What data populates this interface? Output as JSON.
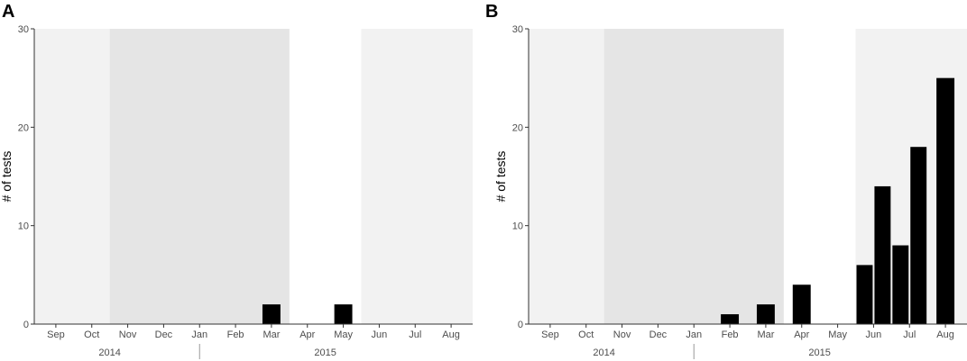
{
  "chart_data": [
    {
      "type": "bar",
      "panel_label": "A",
      "ylabel": "# of tests",
      "ylim": [
        0,
        30
      ],
      "yticks": [
        0,
        10,
        20,
        30
      ],
      "categories": [
        "Sep",
        "Oct",
        "Nov",
        "Dec",
        "Jan",
        "Feb",
        "Mar",
        "Apr",
        "May",
        "Jun",
        "Jul",
        "Aug"
      ],
      "years": [
        {
          "label": "2014",
          "from": "Sep",
          "to": "Dec"
        },
        {
          "label": "2015",
          "from": "Jan",
          "to": "Aug"
        }
      ],
      "bars": [
        {
          "month": "Mar",
          "value": 2
        },
        {
          "month": "May",
          "value": 2
        }
      ],
      "shaded_periods": [
        {
          "from": "Sep",
          "to": "Oct",
          "shade": "light"
        },
        {
          "from": "Nov",
          "to": "Mar",
          "shade": "dark"
        },
        {
          "from": "Jun",
          "to": "Aug",
          "shade": "light"
        }
      ],
      "bar_color": "#000000",
      "light_shade_color": "#f2f2f2",
      "dark_shade_color": "#e5e5e5",
      "grid": false
    },
    {
      "type": "bar",
      "panel_label": "B",
      "ylabel": "# of tests",
      "ylim": [
        0,
        30
      ],
      "yticks": [
        0,
        10,
        20,
        30
      ],
      "categories": [
        "Sep",
        "Oct",
        "Nov",
        "Dec",
        "Jan",
        "Feb",
        "Mar",
        "Apr",
        "May",
        "Jun",
        "Jul",
        "Aug"
      ],
      "years": [
        {
          "label": "2014",
          "from": "Sep",
          "to": "Dec"
        },
        {
          "label": "2015",
          "from": "Jan",
          "to": "Aug"
        }
      ],
      "bars": [
        {
          "month": "Feb",
          "value": 1
        },
        {
          "month": "Mar",
          "value": 2
        },
        {
          "month": "Apr",
          "value": 4
        },
        {
          "month": "Jun",
          "value": 6
        },
        {
          "month": "Jun",
          "value": 14
        },
        {
          "month": "Jul",
          "value": 8
        },
        {
          "month": "Jul",
          "value": 18
        },
        {
          "month": "Aug",
          "value": 25
        }
      ],
      "shaded_periods": [
        {
          "from": "Sep",
          "to": "Oct",
          "shade": "light"
        },
        {
          "from": "Nov",
          "to": "Mar",
          "shade": "dark"
        },
        {
          "from": "Jun",
          "to": "Aug",
          "shade": "light"
        }
      ],
      "bar_color": "#000000",
      "light_shade_color": "#f2f2f2",
      "dark_shade_color": "#e5e5e5",
      "grid": false
    }
  ]
}
